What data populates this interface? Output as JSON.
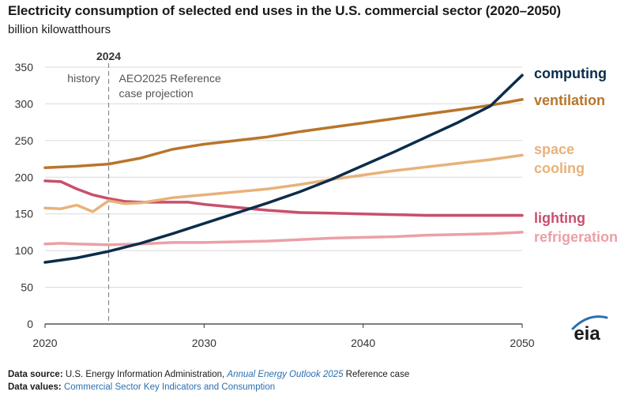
{
  "title": "Electricity consumption of selected end uses in the U.S. commercial sector (2020–2050)",
  "subtitle": "billion kilowatthours",
  "logo_text": "eia",
  "footer": {
    "source_label": "Data source:",
    "source_text": "U.S. Energy Information Administration,",
    "source_link": "Annual Energy Outlook 2025",
    "source_suffix": "Reference case",
    "values_label": "Data values:",
    "values_link": "Commercial Sector Key Indicators and Consumption"
  },
  "chart_data": {
    "type": "line",
    "xlim": [
      2020,
      2050
    ],
    "ylim": [
      0,
      350
    ],
    "x_ticks": [
      "2020",
      "2030",
      "2040",
      "2050"
    ],
    "y_ticks": [
      "0",
      "50",
      "100",
      "150",
      "200",
      "250",
      "300",
      "350"
    ],
    "grid": true,
    "divider": {
      "x": 2024,
      "label": "2024",
      "left_label": "history",
      "right_label_lines": [
        "AEO2025 Reference",
        "case projection"
      ]
    },
    "series": [
      {
        "name": "computing",
        "color": "#0b2d4b",
        "label_lines": [
          "computing"
        ],
        "points": [
          [
            2020,
            84
          ],
          [
            2022,
            90
          ],
          [
            2024,
            99
          ],
          [
            2026,
            110
          ],
          [
            2028,
            123
          ],
          [
            2030,
            137
          ],
          [
            2032,
            151
          ],
          [
            2034,
            165
          ],
          [
            2036,
            180
          ],
          [
            2038,
            197
          ],
          [
            2040,
            216
          ],
          [
            2042,
            235
          ],
          [
            2044,
            255
          ],
          [
            2046,
            275
          ],
          [
            2048,
            297
          ],
          [
            2050,
            339
          ]
        ]
      },
      {
        "name": "ventilation",
        "color": "#b8752b",
        "label_lines": [
          "ventilation"
        ],
        "points": [
          [
            2020,
            213
          ],
          [
            2022,
            215
          ],
          [
            2024,
            218
          ],
          [
            2026,
            226
          ],
          [
            2028,
            238
          ],
          [
            2030,
            245
          ],
          [
            2032,
            250
          ],
          [
            2034,
            255
          ],
          [
            2036,
            262
          ],
          [
            2038,
            268
          ],
          [
            2040,
            274
          ],
          [
            2042,
            280
          ],
          [
            2044,
            286
          ],
          [
            2046,
            292
          ],
          [
            2048,
            298
          ],
          [
            2050,
            306
          ]
        ]
      },
      {
        "name": "space cooling",
        "color": "#e8b27a",
        "label_lines": [
          "space",
          "cooling"
        ],
        "points": [
          [
            2020,
            158
          ],
          [
            2021,
            157
          ],
          [
            2022,
            162
          ],
          [
            2023,
            153
          ],
          [
            2024,
            168
          ],
          [
            2025,
            164
          ],
          [
            2026,
            165
          ],
          [
            2028,
            172
          ],
          [
            2030,
            176
          ],
          [
            2032,
            180
          ],
          [
            2034,
            184
          ],
          [
            2036,
            190
          ],
          [
            2038,
            197
          ],
          [
            2040,
            203
          ],
          [
            2042,
            209
          ],
          [
            2044,
            214
          ],
          [
            2046,
            219
          ],
          [
            2048,
            224
          ],
          [
            2050,
            230
          ]
        ]
      },
      {
        "name": "lighting",
        "color": "#c94f6d",
        "label_lines": [
          "lighting"
        ],
        "points": [
          [
            2020,
            195
          ],
          [
            2021,
            194
          ],
          [
            2022,
            184
          ],
          [
            2023,
            176
          ],
          [
            2024,
            171
          ],
          [
            2025,
            167
          ],
          [
            2026,
            166
          ],
          [
            2028,
            166
          ],
          [
            2029,
            166
          ],
          [
            2030,
            163
          ],
          [
            2032,
            159
          ],
          [
            2034,
            155
          ],
          [
            2036,
            152
          ],
          [
            2038,
            151
          ],
          [
            2040,
            150
          ],
          [
            2042,
            149
          ],
          [
            2044,
            148
          ],
          [
            2046,
            148
          ],
          [
            2048,
            148
          ],
          [
            2050,
            148
          ]
        ]
      },
      {
        "name": "refrigeration",
        "color": "#eba0a6",
        "label_lines": [
          "refrigeration"
        ],
        "points": [
          [
            2020,
            109
          ],
          [
            2021,
            110
          ],
          [
            2022,
            109
          ],
          [
            2024,
            108
          ],
          [
            2026,
            109
          ],
          [
            2028,
            111
          ],
          [
            2030,
            111
          ],
          [
            2032,
            112
          ],
          [
            2034,
            113
          ],
          [
            2036,
            115
          ],
          [
            2038,
            117
          ],
          [
            2040,
            118
          ],
          [
            2042,
            119
          ],
          [
            2044,
            121
          ],
          [
            2046,
            122
          ],
          [
            2048,
            123
          ],
          [
            2050,
            125
          ]
        ]
      }
    ]
  }
}
